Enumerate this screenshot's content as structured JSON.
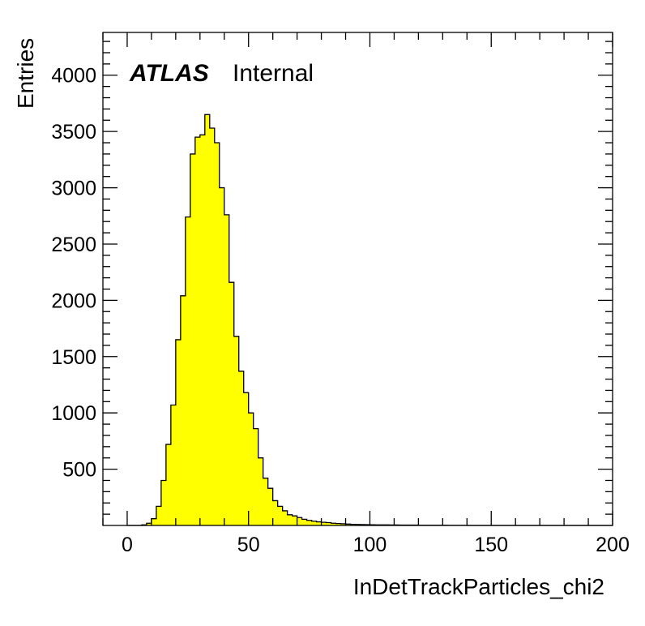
{
  "chart_data": {
    "type": "bar",
    "style": "histogram",
    "experiment_label": "ATLAS",
    "status_label": "Internal",
    "xlabel": "InDetTrackParticles_chi2",
    "ylabel": "Entries",
    "xlim": [
      -10,
      200
    ],
    "ylim": [
      0,
      4380
    ],
    "x_ticks": [
      0,
      50,
      100,
      150,
      200
    ],
    "y_ticks": [
      500,
      1000,
      1500,
      2000,
      2500,
      3000,
      3500,
      4000
    ],
    "bin_width": 2,
    "bin_edges_start": 0,
    "values": [
      0,
      0,
      0,
      5,
      20,
      60,
      170,
      400,
      720,
      1070,
      1650,
      2040,
      2740,
      3300,
      3450,
      3470,
      3650,
      3530,
      3400,
      3000,
      2760,
      2160,
      1680,
      1370,
      1180,
      1000,
      860,
      600,
      420,
      330,
      220,
      170,
      130,
      95,
      85,
      70,
      55,
      45,
      38,
      32,
      28,
      25,
      20,
      17,
      15,
      12,
      10,
      9,
      8,
      7,
      6,
      5,
      5,
      5,
      4,
      4,
      3,
      3,
      3,
      3,
      2,
      2,
      2,
      2,
      2,
      2,
      1,
      1,
      1,
      1,
      0,
      0,
      0,
      0,
      0,
      0,
      0,
      0,
      0,
      0,
      0,
      0,
      0,
      0,
      0,
      0,
      0,
      0,
      0,
      0,
      0,
      0,
      0,
      0,
      0,
      0,
      0,
      0,
      0,
      0
    ],
    "fill_color": "#ffff00",
    "line_color": "#000000",
    "grid": false,
    "legend": "none"
  }
}
